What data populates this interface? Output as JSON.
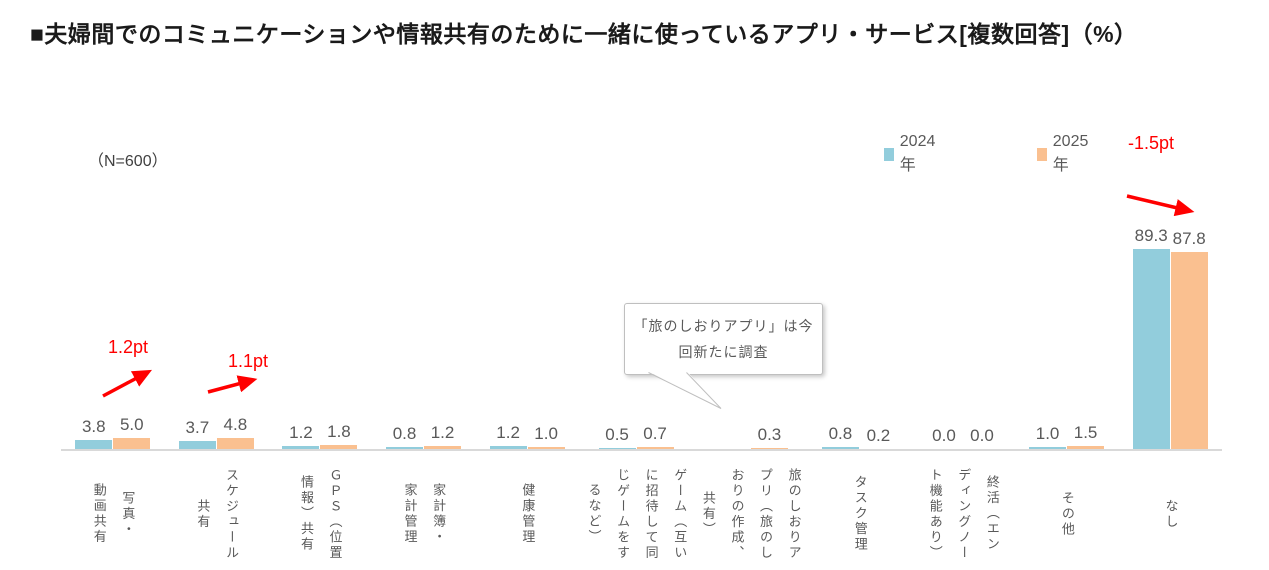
{
  "title": "■夫婦間でのコミュニケーションや情報共有のために一緒に使っているアプリ・サービス[複数回答]（%）",
  "sample_note": "（N=600）",
  "legend": {
    "series2024": "2024年",
    "series2025": "2025年"
  },
  "colors": {
    "series2024": "#92CDDC",
    "series2025": "#FAC090",
    "annotation_red": "#FF0000",
    "label_gray": "#595959",
    "axis_gray": "#D9D9D9"
  },
  "annotations": [
    {
      "label": "1.2pt",
      "target": "写真・動画共有",
      "direction": "up"
    },
    {
      "label": "1.1pt",
      "target": "スケジュール共有",
      "direction": "up"
    },
    {
      "label": "-1.5pt",
      "target": "なし",
      "direction": "down"
    }
  ],
  "callout": {
    "text": "「旅のしおりアプリ」は今\n回新たに調査",
    "target": "旅のしおりアプリ（旅のしおりの作成、共有）"
  },
  "chart_data": {
    "type": "bar",
    "title": "夫婦間でのコミュニケーションや情報共有のために一緒に使っているアプリ・サービス[複数回答]（%）",
    "sample_size": 600,
    "categories": [
      "写真・動画共有",
      "スケジュール共有",
      "ＧＰＳ（位置情報）共有",
      "家計簿・家計管理",
      "健康管理",
      "ゲーム（互いに招待して同じゲームをするなど）",
      "旅のしおりアプリ（旅のしおりの作成、共有）",
      "タスク管理",
      "終活（エンディングノート機能あり）",
      "その他",
      "なし"
    ],
    "category_labels_wrapped": [
      "写真・\n動画共有",
      "スケジュール\n共有",
      "ＧＰＳ（位置\n情報）共有",
      "家計簿・\n家計管理",
      "健康管理",
      "ゲーム（互い\nに招待して同\nじゲームをす\nるなど）",
      "旅のしおりア\nプリ（旅のし\nおりの作成、\n共有）",
      "タスク管理",
      "終活（エン\nディングノー\nト機能あり）",
      "その他",
      "なし"
    ],
    "series": [
      {
        "name": "2024年",
        "values": [
          3.8,
          3.7,
          1.2,
          0.8,
          1.2,
          0.5,
          null,
          0.8,
          0.0,
          1.0,
          89.3
        ]
      },
      {
        "name": "2025年",
        "values": [
          5.0,
          4.8,
          1.8,
          1.2,
          1.0,
          0.7,
          0.3,
          0.2,
          0.0,
          1.5,
          87.8
        ]
      }
    ],
    "ylim": [
      0,
      100
    ],
    "value_labels_shown": true,
    "grid": false,
    "legend_position": "top-right"
  }
}
